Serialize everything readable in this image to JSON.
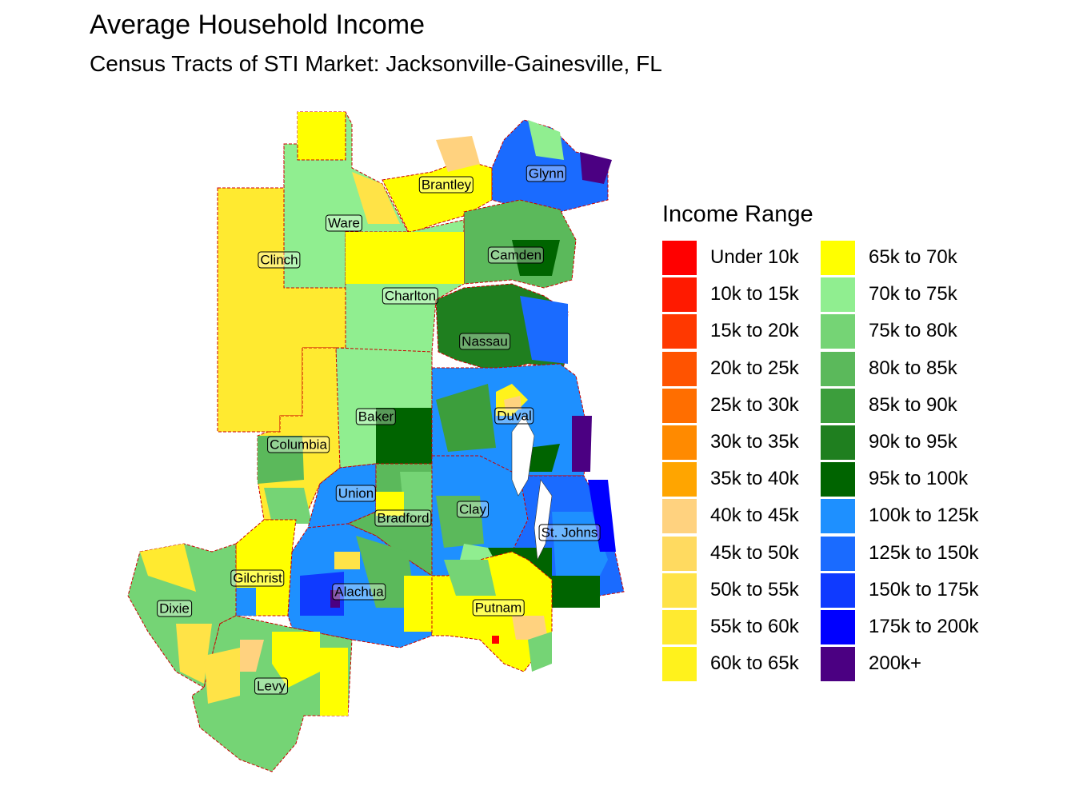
{
  "title": "Average Household Income",
  "subtitle": "Census Tracts of STI Market: Jacksonville-Gainesville, FL",
  "legend": {
    "title": "Income Range",
    "items": [
      {
        "label": "Under 10k",
        "color": "#FF0000"
      },
      {
        "label": "10k to 15k",
        "color": "#FF1A00"
      },
      {
        "label": "15k to 20k",
        "color": "#FF3800"
      },
      {
        "label": "20k to 25k",
        "color": "#FF5300"
      },
      {
        "label": "25k to 30k",
        "color": "#FF6E00"
      },
      {
        "label": "30k to 35k",
        "color": "#FF8A00"
      },
      {
        "label": "35k to 40k",
        "color": "#FFA500"
      },
      {
        "label": "40k to 45k",
        "color": "#FFD27F"
      },
      {
        "label": "45k to 50k",
        "color": "#FFDA60"
      },
      {
        "label": "50k to 55k",
        "color": "#FFE347"
      },
      {
        "label": "55k to 60k",
        "color": "#FFEA30"
      },
      {
        "label": "60k to 65k",
        "color": "#FFF21C"
      },
      {
        "label": "65k to 70k",
        "color": "#FFFF00"
      },
      {
        "label": "70k to 75k",
        "color": "#90EE90"
      },
      {
        "label": "75k to 80k",
        "color": "#75D475"
      },
      {
        "label": "80k to 85k",
        "color": "#5BB95B"
      },
      {
        "label": "85k to 90k",
        "color": "#3C9E3C"
      },
      {
        "label": "90k to 95k",
        "color": "#1F7F1F"
      },
      {
        "label": "95k to 100k",
        "color": "#006400"
      },
      {
        "label": "100k to 125k",
        "color": "#1E90FF"
      },
      {
        "label": "125k to 150k",
        "color": "#1A6BFF"
      },
      {
        "label": "150k to 175k",
        "color": "#0F3AFF"
      },
      {
        "label": "175k to 200k",
        "color": "#0000FF"
      },
      {
        "label": "200k+",
        "color": "#4B0082"
      }
    ]
  },
  "counties": {
    "brantley": "Brantley",
    "glynn": "Glynn",
    "ware": "Ware",
    "clinch": "Clinch",
    "camden": "Camden",
    "charlton": "Charlton",
    "nassau": "Nassau",
    "baker": "Baker",
    "duval": "Duval",
    "columbia": "Columbia",
    "union": "Union",
    "clay": "Clay",
    "bradford": "Bradford",
    "st_johns": "St. Johns",
    "gilchrist": "Gilchrist",
    "alachua": "Alachua",
    "dixie": "Dixie",
    "putnam": "Putnam",
    "levy": "Levy"
  }
}
